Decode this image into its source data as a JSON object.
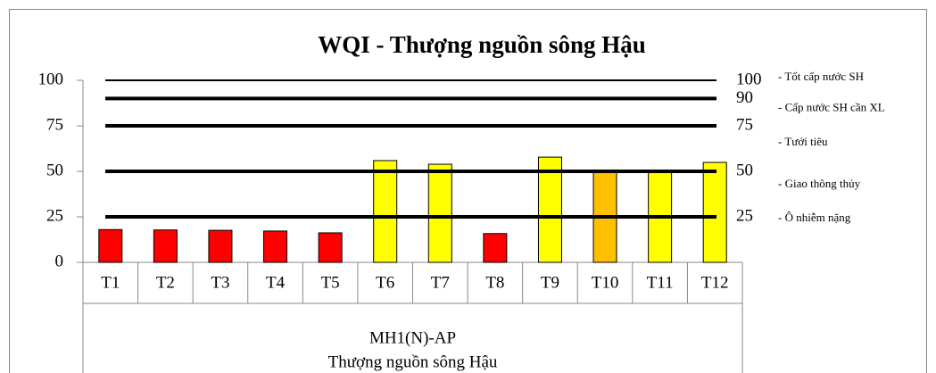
{
  "chart_data": {
    "type": "bar",
    "title": "WQI - Thượng nguồn sông Hậu",
    "categories": [
      "T1",
      "T2",
      "T3",
      "T4",
      "T5",
      "T6",
      "T7",
      "T8",
      "T9",
      "T10",
      "T11",
      "T12"
    ],
    "values": [
      18,
      17.8,
      17.6,
      17.2,
      16.2,
      55.9,
      53.9,
      15.8,
      57.8,
      50,
      50,
      54.9
    ],
    "colors": [
      "#ff0000",
      "#ff0000",
      "#ff0000",
      "#ff0000",
      "#ff0000",
      "#ffff00",
      "#ffff00",
      "#ff0000",
      "#ffff00",
      "#ffc000",
      "#ffff00",
      "#ffff00"
    ],
    "group_labels": [
      "MH1(N)-AP",
      "Thượng nguồn sông Hậu"
    ],
    "ylim": [
      0,
      100
    ],
    "yticks": [
      0,
      25,
      50,
      75,
      100
    ],
    "reference_lines": [
      {
        "value": 100,
        "description": "- Tốt cấp nước SH",
        "style": "thin"
      },
      {
        "value": 90,
        "description": "- Cấp nước SH cần XL",
        "style": "thick"
      },
      {
        "value": 75,
        "description": "- Tưới tiêu",
        "style": "thick"
      },
      {
        "value": 50,
        "description": "- Giao thông thủy",
        "style": "thick"
      },
      {
        "value": 25,
        "description": "- Ô nhiễm nặng",
        "style": "thick"
      }
    ]
  }
}
